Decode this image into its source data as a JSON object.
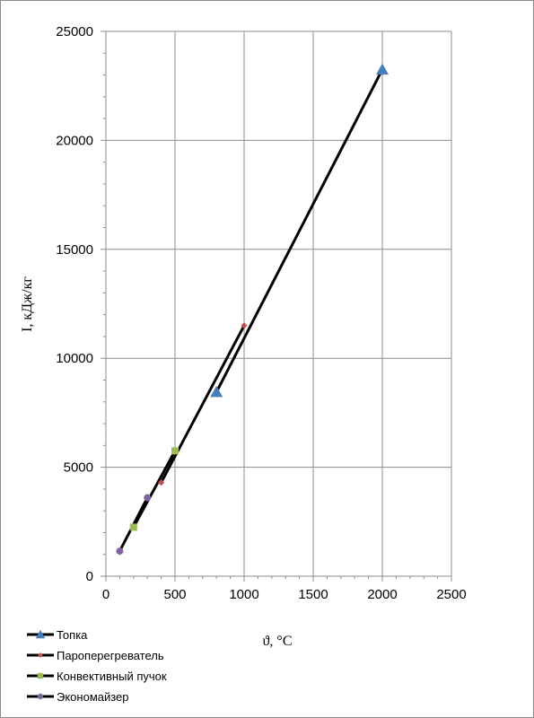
{
  "chart_data": {
    "type": "line",
    "title": "",
    "xlabel": "ϑ,  °C",
    "ylabel": "I, кДж/кг",
    "xlim": [
      0,
      2500
    ],
    "ylim": [
      0,
      25000
    ],
    "x_ticks": [
      "0",
      "500",
      "1000",
      "1500",
      "2000",
      "2500"
    ],
    "y_ticks": [
      "0",
      "5000",
      "10000",
      "15000",
      "20000",
      "25000"
    ],
    "grid": true,
    "legend_position": "bottom-left",
    "series": [
      {
        "name": "Топка",
        "marker": "triangle",
        "marker_color": "#4a7ebb",
        "line_color": "#000000",
        "x": [
          800,
          2000
        ],
        "y": [
          8450,
          23250
        ]
      },
      {
        "name": "Пароперегреватель",
        "marker": "diamond",
        "marker_color": "#c0504d",
        "line_color": "#000000",
        "x": [
          400,
          1000
        ],
        "y": [
          4300,
          11500
        ]
      },
      {
        "name": "Конвективный пучок",
        "marker": "square",
        "marker_color": "#9bbb59",
        "line_color": "#000000",
        "x": [
          200,
          500
        ],
        "y": [
          2250,
          5750
        ]
      },
      {
        "name": "Экономайзер",
        "marker": "circle",
        "marker_color": "#8064a2",
        "line_color": "#000000",
        "x": [
          100,
          300
        ],
        "y": [
          1150,
          3600
        ]
      }
    ]
  }
}
